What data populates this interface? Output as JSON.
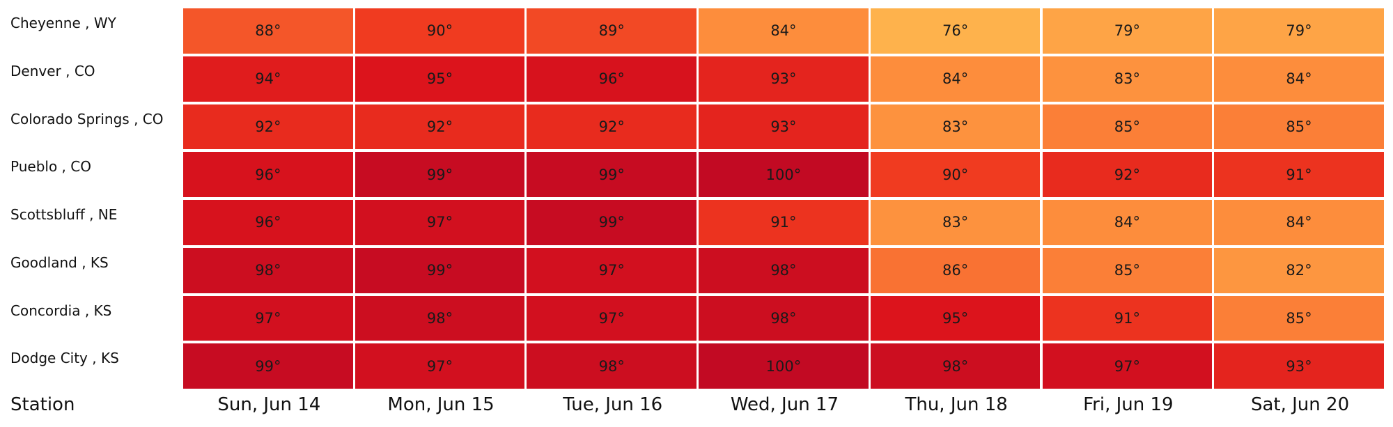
{
  "chart_data": {
    "type": "heatmap",
    "ylabel": "Station",
    "rows": [
      "Cheyenne , WY",
      "Denver , CO",
      "Colorado Springs , CO",
      "Pueblo , CO",
      "Scottsbluff , NE",
      "Goodland , KS",
      "Concordia , KS",
      "Dodge City , KS"
    ],
    "columns": [
      "Sun, Jun 14",
      "Mon, Jun 15",
      "Tue, Jun 16",
      "Wed, Jun 17",
      "Thu, Jun 18",
      "Fri, Jun 19",
      "Sat, Jun 20"
    ],
    "values": [
      [
        88,
        90,
        89,
        84,
        76,
        79,
        79
      ],
      [
        94,
        95,
        96,
        93,
        84,
        83,
        84
      ],
      [
        92,
        92,
        92,
        93,
        83,
        85,
        85
      ],
      [
        96,
        99,
        99,
        100,
        90,
        92,
        91
      ],
      [
        96,
        97,
        99,
        91,
        83,
        84,
        84
      ],
      [
        98,
        99,
        97,
        98,
        86,
        85,
        82
      ],
      [
        97,
        98,
        97,
        98,
        95,
        91,
        85
      ],
      [
        99,
        97,
        98,
        100,
        98,
        97,
        93
      ]
    ],
    "value_suffix": "°",
    "color_scale": {
      "stops": [
        {
          "value": 76,
          "color": "#feb24c"
        },
        {
          "value": 84,
          "color": "#fd8d3c"
        },
        {
          "value": 90,
          "color": "#f03b20"
        },
        {
          "value": 95,
          "color": "#dc141c"
        },
        {
          "value": 100,
          "color": "#c20a23"
        }
      ]
    }
  }
}
